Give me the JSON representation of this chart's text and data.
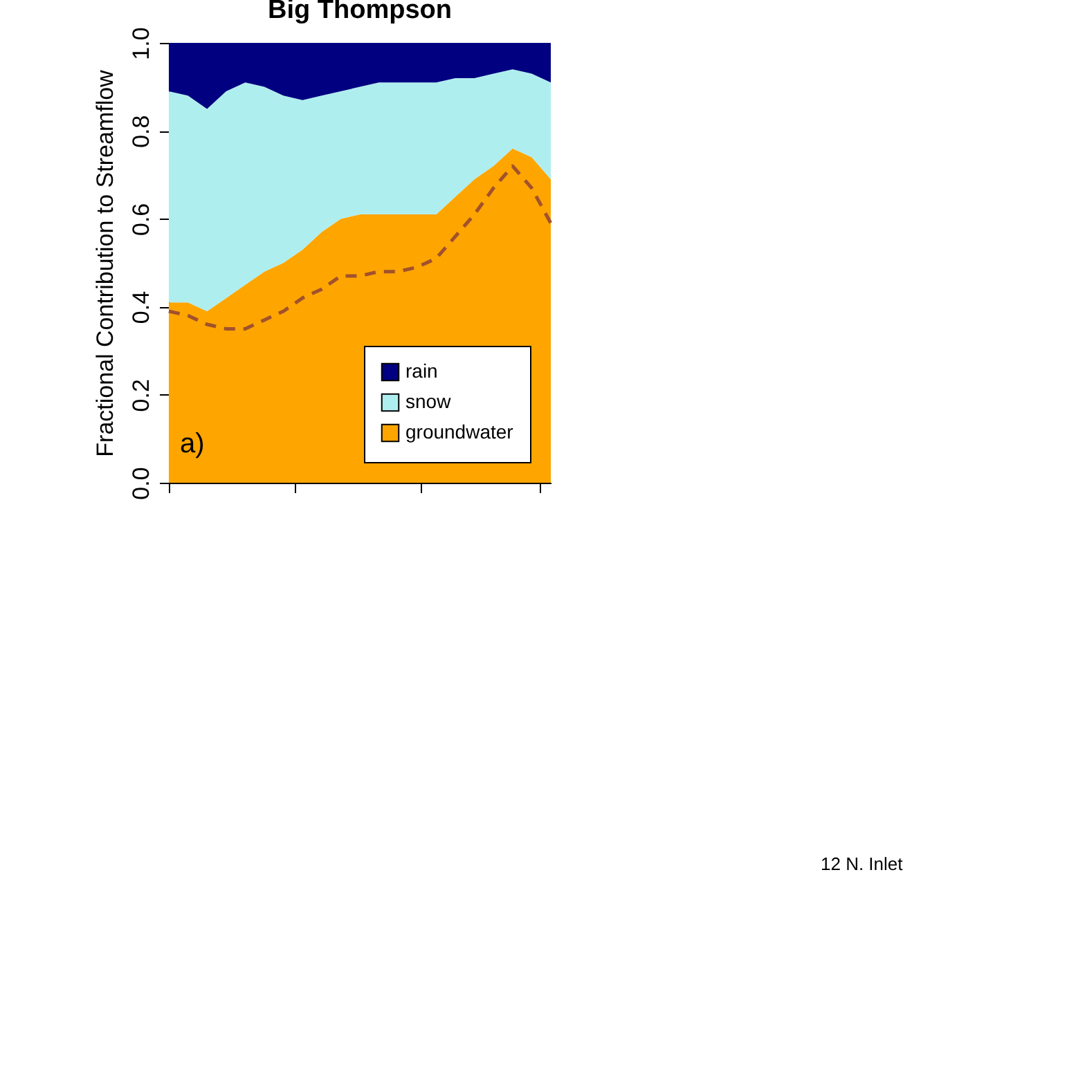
{
  "chart_data": {
    "type": "area",
    "title": "Big Thompson",
    "ylabel": "Fractional Contribution to Streamflow",
    "stacked": true,
    "categories": [
      null,
      null,
      null,
      null,
      null,
      null,
      null,
      null,
      null,
      null,
      null,
      null,
      null,
      null,
      null,
      null,
      null,
      null,
      null,
      null,
      null
    ],
    "ylim": [
      0,
      1
    ],
    "yticks": [
      {
        "value": 0,
        "label": "0.0"
      },
      {
        "value": 0.2,
        "label": "0.2"
      },
      {
        "value": 0.4,
        "label": "0.4"
      },
      {
        "value": 0.6,
        "label": "0.6"
      },
      {
        "value": 0.8,
        "label": "0.8"
      },
      {
        "value": 1,
        "label": "1.0"
      }
    ],
    "tick_labels": "y",
    "legend": "bottom right",
    "series": [
      {
        "name": "groundwater",
        "color": "#ffa500",
        "values": [
          0.41,
          0.41,
          0.39,
          0.42,
          0.45,
          0.48,
          0.5,
          0.53,
          0.57,
          0.6,
          0.61,
          0.61,
          0.61,
          0.61,
          0.61,
          0.65,
          0.69,
          0.72,
          0.76,
          0.74,
          0.69
        ]
      },
      {
        "name": "snow",
        "color": "#afeeee",
        "values": [
          0.48,
          0.47,
          0.46,
          0.47,
          0.46,
          0.42,
          0.38,
          0.34,
          0.31,
          0.29,
          0.29,
          0.3,
          0.3,
          0.3,
          0.3,
          0.27,
          0.23,
          0.21,
          0.18,
          0.19,
          0.22
        ]
      },
      {
        "name": "rain",
        "color": "#000080",
        "values": [
          0.11,
          0.12,
          0.15,
          0.11,
          0.09,
          0.1,
          0.12,
          0.13,
          0.12,
          0.11,
          0.1,
          0.09,
          0.09,
          0.09,
          0.09,
          0.08,
          0.08,
          0.07,
          0.06,
          0.07,
          0.09
        ]
      },
      {
        "type": "line",
        "line_style": "dashed",
        "color": "#a0522d",
        "values": [
          0.39,
          0.38,
          0.36,
          0.35,
          0.35,
          0.37,
          0.39,
          0.42,
          0.44,
          0.47,
          0.47,
          0.48,
          0.48,
          0.49,
          0.51,
          0.56,
          0.61,
          0.67,
          0.72,
          0.67,
          0.59
        ]
      }
    ],
    "annotations": [
      "a)",
      "12 N. Inlet"
    ]
  }
}
